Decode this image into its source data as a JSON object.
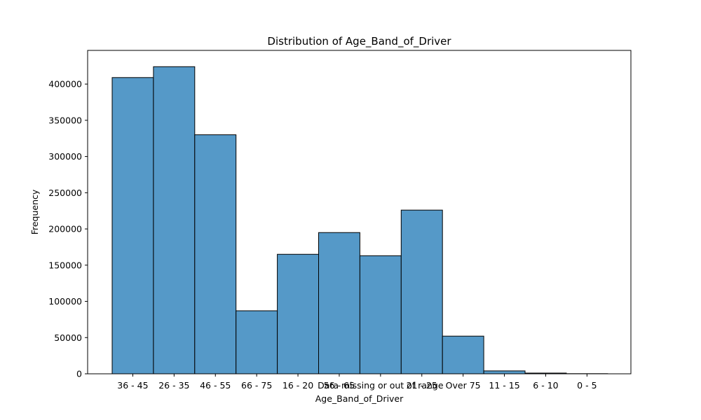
{
  "chart_data": {
    "type": "bar",
    "title": "Distribution of Age_Band_of_Driver",
    "xlabel": "Age_Band_of_Driver",
    "ylabel": "Frequency",
    "categories": [
      "36 - 45",
      "26 - 35",
      "46 - 55",
      "66 - 75",
      "16 - 20",
      "56 - 65",
      "Data missing or out of range",
      "21 - 25",
      "Over 75",
      "11 - 15",
      "6 - 10",
      "0 - 5"
    ],
    "values": [
      409000,
      424000,
      330000,
      87000,
      165000,
      195000,
      163000,
      226000,
      52000,
      4000,
      1000,
      200
    ],
    "ylim": [
      0,
      450000
    ],
    "yticks": [
      0,
      50000,
      100000,
      150000,
      200000,
      250000,
      300000,
      350000,
      400000
    ],
    "grid": false,
    "colors": {
      "bar_fill": "#5599c8",
      "bar_edge": "#000000"
    }
  }
}
